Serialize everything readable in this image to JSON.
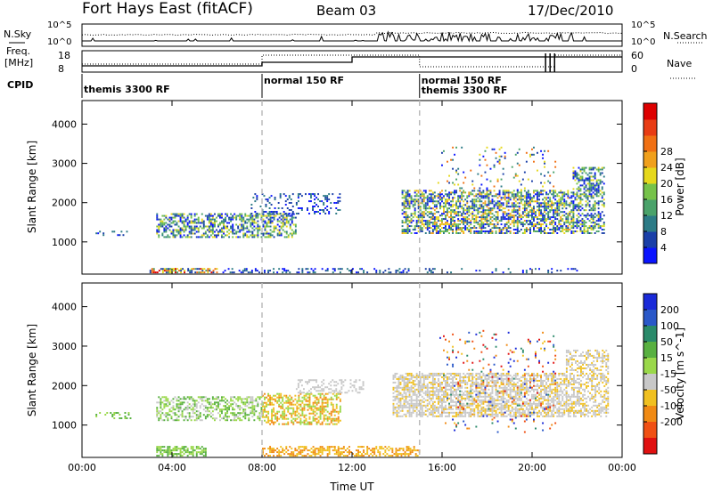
{
  "header": {
    "title": "Fort Hays East (fitACF)",
    "beam": "Beam 03",
    "date": "17/Dec/2010"
  },
  "noise_panel": {
    "left_label": "N.Sky",
    "right_label": "N.Search",
    "ticks": [
      "10^5",
      "10^0"
    ]
  },
  "freq_panel": {
    "left_label_1": "Freq.",
    "left_label_2": "[MHz]",
    "left_ticks": [
      "18",
      "8"
    ],
    "right_label": "Nave",
    "right_ticks": [
      "60",
      "0"
    ]
  },
  "cpid": {
    "label": "CPID",
    "segments": [
      {
        "start": 0,
        "end": 8,
        "label": "themis 3300 RF"
      },
      {
        "start": 8,
        "end": 15,
        "label": "normal 150 RF"
      },
      {
        "start": 15,
        "end": 24,
        "label": "normal 150 RF",
        "label2": "themis 3300 RF"
      }
    ]
  },
  "chart_data": [
    {
      "type": "heatmap",
      "title": "",
      "xlabel": "",
      "ylabel": "Slant Range [km]",
      "xlim": [
        0,
        24
      ],
      "ylim": [
        180,
        4600
      ],
      "yticks": [
        1000,
        2000,
        3000,
        4000
      ],
      "colorbar": {
        "label": "Power [dB]",
        "ticks": [
          "4",
          "8",
          "12",
          "16",
          "20",
          "24",
          "28"
        ],
        "colors": [
          "#0a14ff",
          "#1a3fa8",
          "#2c7b86",
          "#4aa26a",
          "#76c24a",
          "#e6d81c",
          "#f0a01c",
          "#f07014",
          "#e83c14",
          "#dd0000"
        ]
      },
      "regions": [
        {
          "t0": 0.6,
          "t1": 2.2,
          "r0": 1150,
          "r1": 1300,
          "density": 0.2,
          "pal": [
            0,
            1,
            2
          ]
        },
        {
          "t0": 3.0,
          "t1": 6.0,
          "r0": 200,
          "r1": 330,
          "density": 0.6,
          "pal": [
            1,
            3,
            5,
            7,
            9
          ]
        },
        {
          "t0": 3.3,
          "t1": 9.5,
          "r0": 1100,
          "r1": 1700,
          "density": 0.55,
          "pal": [
            0,
            1,
            2,
            3,
            4,
            5
          ]
        },
        {
          "t0": 7.5,
          "t1": 11.5,
          "r0": 1700,
          "r1": 2200,
          "density": 0.25,
          "pal": [
            0,
            1,
            2
          ]
        },
        {
          "t0": 6.0,
          "t1": 14.5,
          "r0": 200,
          "r1": 330,
          "density": 0.3,
          "pal": [
            0,
            1,
            2
          ]
        },
        {
          "t0": 14.2,
          "t1": 21.8,
          "r0": 1200,
          "r1": 2300,
          "density": 0.6,
          "pal": [
            0,
            1,
            2,
            3,
            4,
            5,
            6
          ]
        },
        {
          "t0": 15.8,
          "t1": 21.0,
          "r0": 2300,
          "r1": 3400,
          "density": 0.06,
          "pal": [
            0,
            1,
            2,
            3,
            5,
            7
          ]
        },
        {
          "t0": 21.8,
          "t1": 23.2,
          "r0": 1200,
          "r1": 2900,
          "density": 0.5,
          "pal": [
            0,
            1,
            2,
            3,
            4,
            5
          ]
        },
        {
          "t0": 15.0,
          "t1": 22.0,
          "r0": 200,
          "r1": 300,
          "density": 0.15,
          "pal": [
            0,
            1,
            2
          ]
        }
      ]
    },
    {
      "type": "heatmap",
      "title": "",
      "xlabel": "Time UT",
      "ylabel": "Slant Range [km]",
      "xlim": [
        0,
        24
      ],
      "ylim": [
        180,
        4600
      ],
      "xticks": [
        "00:00",
        "04:00",
        "08:00",
        "12:00",
        "16:00",
        "20:00",
        "00:00"
      ],
      "yticks": [
        1000,
        2000,
        3000,
        4000
      ],
      "colorbar": {
        "label": "Velocity [m s^-1]",
        "ticks": [
          "200",
          "100",
          "50",
          "15",
          "-15",
          "-50",
          "-100",
          "-200"
        ],
        "colors": [
          "#1a2ad8",
          "#2a58c8",
          "#2a8a6a",
          "#58b040",
          "#9ad84a",
          "#c8c8c8",
          "#f0c020",
          "#f08a14",
          "#f05014",
          "#e01010"
        ]
      },
      "regions": [
        {
          "t0": 0.6,
          "t1": 2.2,
          "r0": 1150,
          "r1": 1300,
          "density": 0.3,
          "pal": [
            3,
            4
          ]
        },
        {
          "t0": 3.3,
          "t1": 5.5,
          "r0": 200,
          "r1": 450,
          "density": 0.6,
          "pal": [
            3,
            4
          ]
        },
        {
          "t0": 3.3,
          "t1": 8.0,
          "r0": 1100,
          "r1": 1700,
          "density": 0.5,
          "pal": [
            3,
            4,
            5
          ]
        },
        {
          "t0": 8.0,
          "t1": 11.5,
          "r0": 1000,
          "r1": 1800,
          "density": 0.55,
          "pal": [
            6,
            7,
            4
          ]
        },
        {
          "t0": 9.5,
          "t1": 12.5,
          "r0": 1800,
          "r1": 2150,
          "density": 0.3,
          "pal": [
            5
          ]
        },
        {
          "t0": 8.0,
          "t1": 15.0,
          "r0": 200,
          "r1": 450,
          "density": 0.5,
          "pal": [
            6,
            7
          ]
        },
        {
          "t0": 13.8,
          "t1": 21.5,
          "r0": 1200,
          "r1": 2300,
          "density": 0.65,
          "pal": [
            5,
            5,
            5,
            6
          ]
        },
        {
          "t0": 21.5,
          "t1": 23.4,
          "r0": 1200,
          "r1": 2900,
          "density": 0.5,
          "pal": [
            5,
            5,
            6
          ]
        },
        {
          "t0": 15.8,
          "t1": 21.0,
          "r0": 800,
          "r1": 3400,
          "density": 0.06,
          "pal": [
            0,
            1,
            2,
            6,
            7,
            8,
            9
          ]
        }
      ]
    }
  ]
}
